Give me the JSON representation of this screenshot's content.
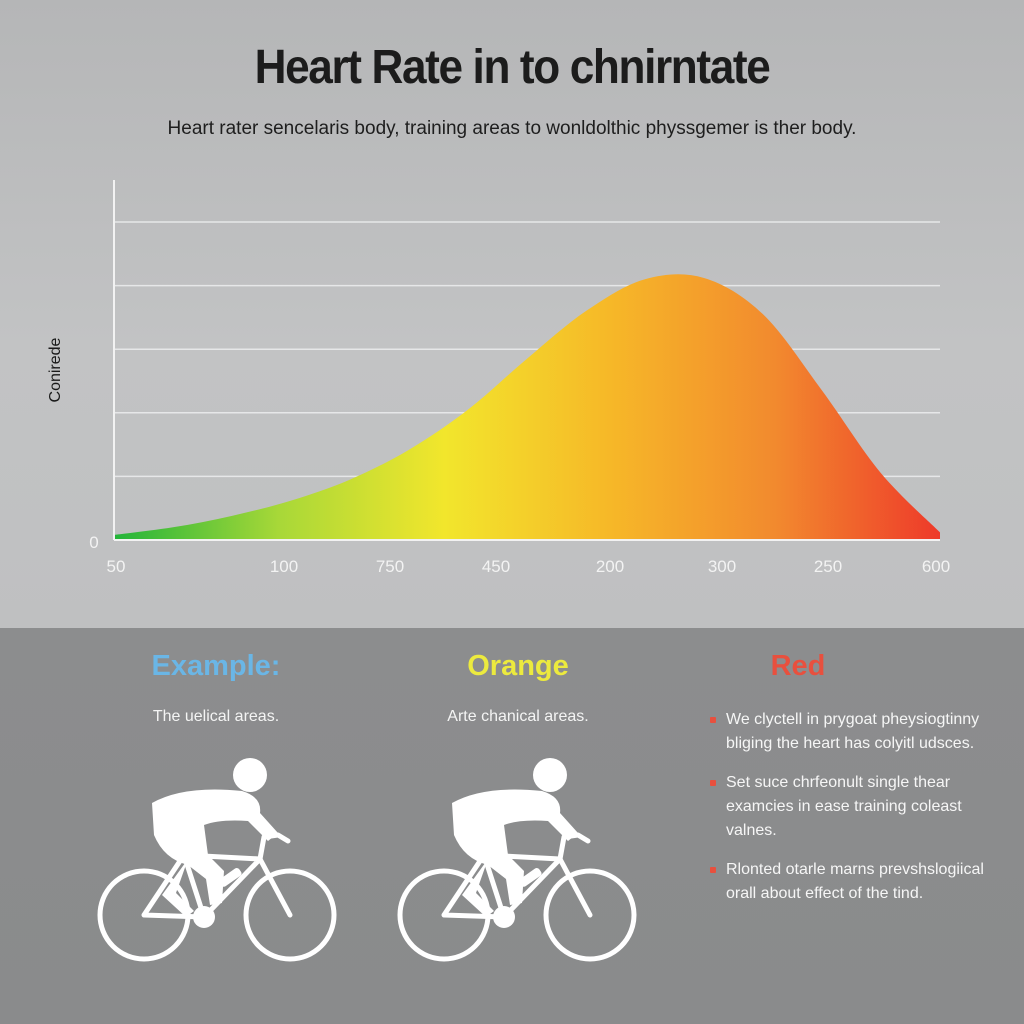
{
  "header": {
    "title": "Heart Rate in to chnirntate",
    "subtitle": "Heart rater sencelaris body, training areas to wonldolthic physsgemer is ther body."
  },
  "chart_data": {
    "type": "area",
    "title": "Heart Rate in to chnirntate",
    "subtitle": "Heart rater sencelaris body, training areas to wonldolthic physsgemer is ther body.",
    "ylabel": "Conirede",
    "xlabel": "",
    "x_tick_labels": [
      "50",
      "100",
      "750",
      "450",
      "200",
      "300",
      "250",
      "600"
    ],
    "y_tick_labels": [
      "0"
    ],
    "ylim": [
      0,
      5
    ],
    "gridlines": 5,
    "grid": true,
    "series": [
      {
        "x": [
          0,
          0.5,
          1,
          1.5,
          2,
          2.5,
          3,
          3.5,
          4,
          4.5,
          5,
          5.5,
          6,
          6.5,
          7
        ],
        "values": [
          0.08,
          0.2,
          0.38,
          0.62,
          0.95,
          1.42,
          2.05,
          2.85,
          3.6,
          4.1,
          4.12,
          3.55,
          2.35,
          1.05,
          0.12
        ]
      }
    ],
    "gradient_colors": [
      "#22b43a",
      "#a8d838",
      "#f2e62c",
      "#f6b828",
      "#f28a2e",
      "#ee3a2a"
    ]
  },
  "panels": [
    {
      "heading": "Example:",
      "color": "#6ab6e6",
      "text": "The uelical areas."
    },
    {
      "heading": "Orange",
      "color": "#ecea3e",
      "text": "Arte chanical areas."
    },
    {
      "heading": "Red",
      "color": "#e8503e"
    }
  ],
  "bullets": [
    "We clyctell in prygoat pheysiogtinny bliging the heart has colyitl udsces.",
    "Set suce chrfeonult single thear examcies in ease training coleast valnes.",
    "Rlonted otarle marns prevshslogiical orall about effect of the tind."
  ],
  "icons": [
    "cyclist-icon",
    "cyclist-icon"
  ]
}
